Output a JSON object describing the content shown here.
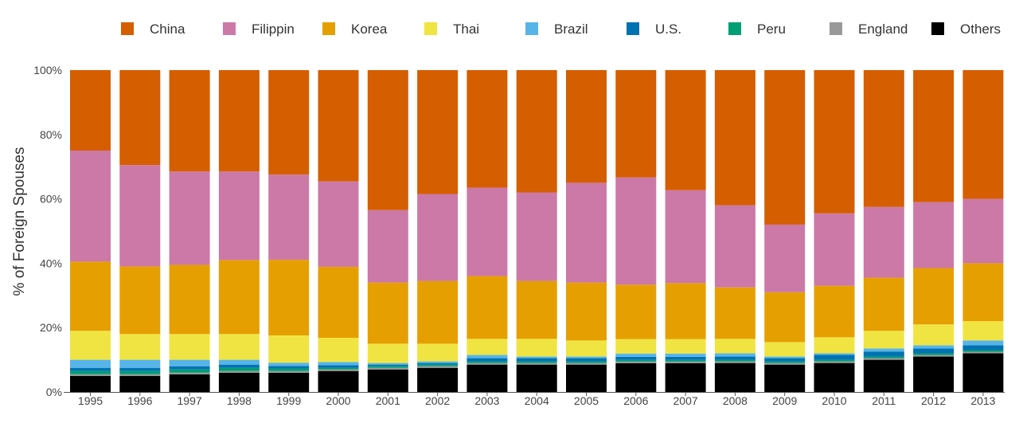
{
  "chart_data": {
    "type": "bar",
    "stacked": true,
    "normalized": true,
    "title": "",
    "xlabel": "",
    "ylabel": "% of Foreign Spouses",
    "ylim": [
      0,
      100
    ],
    "y_ticks": [
      "0%",
      "20%",
      "40%",
      "60%",
      "80%",
      "100%"
    ],
    "grid": false,
    "legend_position": "top",
    "categories": [
      "1995",
      "1996",
      "1997",
      "1998",
      "1999",
      "2000",
      "2001",
      "2002",
      "2003",
      "2004",
      "2005",
      "2006",
      "2007",
      "2008",
      "2009",
      "2010",
      "2011",
      "2012",
      "2013"
    ],
    "series": [
      {
        "name": "Others",
        "color": "#000000",
        "values": [
          5.0,
          5.0,
          5.5,
          6.0,
          6.0,
          6.5,
          7.0,
          7.5,
          8.5,
          8.5,
          8.5,
          9.0,
          9.0,
          9.0,
          8.5,
          9.0,
          10.0,
          11.0,
          12.0
        ]
      },
      {
        "name": "England",
        "color": "#999999",
        "values": [
          0.5,
          0.5,
          0.5,
          0.5,
          0.5,
          0.5,
          0.5,
          0.5,
          0.5,
          0.5,
          0.5,
          0.5,
          0.5,
          0.5,
          0.5,
          0.5,
          0.5,
          0.5,
          0.5
        ]
      },
      {
        "name": "Peru",
        "color": "#009e73",
        "values": [
          1.0,
          1.0,
          1.0,
          1.0,
          0.8,
          0.5,
          0.5,
          0.5,
          0.5,
          0.5,
          0.5,
          0.5,
          0.5,
          0.5,
          0.5,
          0.5,
          0.5,
          0.5,
          0.5
        ]
      },
      {
        "name": "U.S.",
        "color": "#0072b2",
        "values": [
          1.0,
          1.0,
          1.0,
          1.0,
          0.8,
          0.8,
          0.5,
          0.5,
          1.0,
          1.0,
          1.0,
          1.0,
          1.0,
          1.0,
          1.0,
          1.5,
          1.5,
          1.5,
          1.5
        ]
      },
      {
        "name": "Brazil",
        "color": "#56b4e9",
        "values": [
          2.5,
          2.5,
          2.0,
          1.5,
          1.0,
          1.0,
          0.5,
          0.5,
          1.0,
          0.5,
          0.5,
          1.0,
          1.0,
          1.0,
          0.5,
          0.5,
          1.0,
          1.0,
          1.5
        ]
      },
      {
        "name": "Thai",
        "color": "#f0e442",
        "values": [
          9.0,
          8.0,
          8.0,
          8.0,
          8.5,
          7.5,
          6.0,
          5.5,
          5.0,
          5.5,
          5.0,
          4.5,
          4.5,
          4.5,
          4.5,
          5.0,
          5.5,
          6.5,
          6.0
        ]
      },
      {
        "name": "Korea",
        "color": "#e69f00",
        "values": [
          21.5,
          21.0,
          21.5,
          23.0,
          23.5,
          22.0,
          19.0,
          19.5,
          19.5,
          18.0,
          18.0,
          17.0,
          17.5,
          16.0,
          15.5,
          16.0,
          16.5,
          17.5,
          18.0
        ]
      },
      {
        "name": "Filippin",
        "color": "#cc79a7",
        "values": [
          34.5,
          31.5,
          29.0,
          27.5,
          26.5,
          26.5,
          22.5,
          27.0,
          27.5,
          27.5,
          31.0,
          33.5,
          29.0,
          25.5,
          21.0,
          22.5,
          22.0,
          20.5,
          20.0
        ]
      },
      {
        "name": "China",
        "color": "#d55e00",
        "values": [
          25.0,
          29.5,
          31.5,
          31.5,
          32.5,
          34.5,
          43.5,
          38.5,
          36.5,
          38.0,
          35.0,
          33.5,
          37.5,
          42.0,
          48.0,
          44.5,
          42.5,
          41.0,
          40.0
        ]
      }
    ],
    "legend_order": [
      "China",
      "Filippin",
      "Korea",
      "Thai",
      "Brazil",
      "U.S.",
      "Peru",
      "England",
      "Others"
    ]
  }
}
